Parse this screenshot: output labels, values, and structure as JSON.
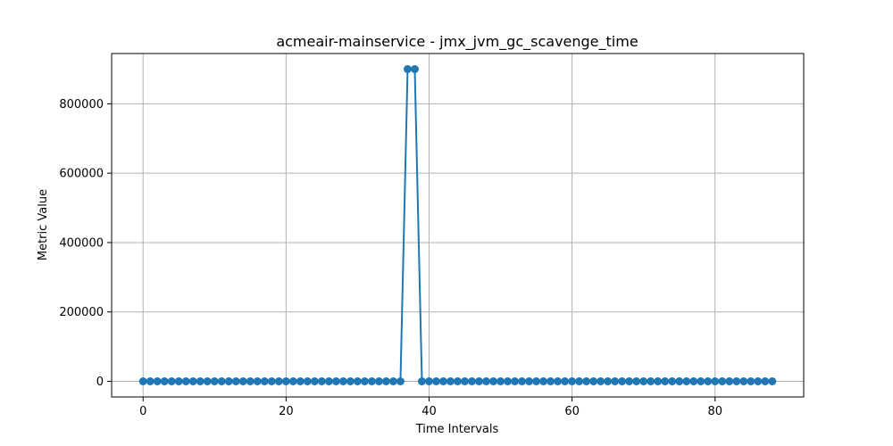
{
  "chart_data": {
    "type": "line",
    "title": "acmeair-mainservice - jmx_jvm_gc_scavenge_time",
    "xlabel": "Time Intervals",
    "ylabel": "Metric Value",
    "xlim": [
      -4.4,
      92.4
    ],
    "ylim": [
      -45000,
      945000
    ],
    "xticks": [
      0,
      20,
      40,
      60,
      80
    ],
    "yticks": [
      0,
      200000,
      400000,
      600000,
      800000
    ],
    "xtick_labels": [
      "0",
      "20",
      "40",
      "60",
      "80"
    ],
    "ytick_labels": [
      "0",
      "200000",
      "400000",
      "600000",
      "800000"
    ],
    "grid": true,
    "color": "#1f77b4",
    "marker": "circle",
    "x": [
      0,
      1,
      2,
      3,
      4,
      5,
      6,
      7,
      8,
      9,
      10,
      11,
      12,
      13,
      14,
      15,
      16,
      17,
      18,
      19,
      20,
      21,
      22,
      23,
      24,
      25,
      26,
      27,
      28,
      29,
      30,
      31,
      32,
      33,
      34,
      35,
      36,
      37,
      38,
      39,
      40,
      41,
      42,
      43,
      44,
      45,
      46,
      47,
      48,
      49,
      50,
      51,
      52,
      53,
      54,
      55,
      56,
      57,
      58,
      59,
      60,
      61,
      62,
      63,
      64,
      65,
      66,
      67,
      68,
      69,
      70,
      71,
      72,
      73,
      74,
      75,
      76,
      77,
      78,
      79,
      80,
      81,
      82,
      83,
      84,
      85,
      86,
      87,
      88
    ],
    "values": [
      0,
      0,
      0,
      0,
      0,
      0,
      0,
      0,
      0,
      0,
      0,
      0,
      0,
      0,
      0,
      0,
      0,
      0,
      0,
      0,
      0,
      0,
      0,
      0,
      0,
      0,
      0,
      0,
      0,
      0,
      0,
      0,
      0,
      0,
      0,
      0,
      0,
      900000,
      900000,
      0,
      0,
      0,
      0,
      0,
      0,
      0,
      0,
      0,
      0,
      0,
      0,
      0,
      0,
      0,
      0,
      0,
      0,
      0,
      0,
      0,
      0,
      0,
      0,
      0,
      0,
      0,
      0,
      0,
      0,
      0,
      0,
      0,
      0,
      0,
      0,
      0,
      0,
      0,
      0,
      0,
      0,
      0,
      0,
      0,
      0,
      0,
      0,
      0,
      0
    ]
  }
}
